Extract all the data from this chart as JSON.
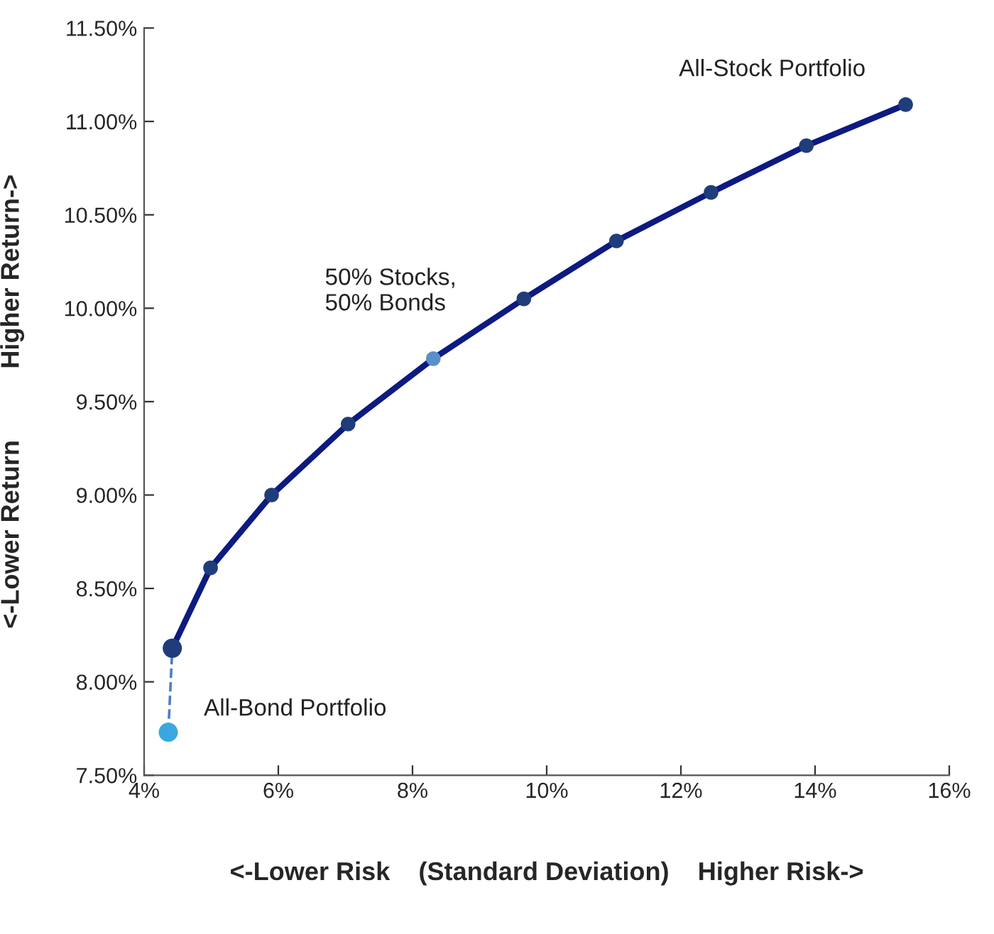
{
  "chart_data": {
    "type": "line",
    "xlabel": "<-Lower Risk    (Standard Deviation)    Higher Risk->",
    "ylabel": "<-Lower Return          Higher Return->",
    "series": [
      {
        "color": "#4a7ec8",
        "line_style": "dashed",
        "marker": "circle",
        "colors": [
          "#3aa8e0",
          "#1f3d7a"
        ],
        "x": [
          4.36,
          4.42
        ],
        "values": [
          7.73,
          8.18
        ]
      },
      {
        "color": "#0d1a80",
        "line_style": "solid",
        "marker": "circle",
        "colors": [
          "#1f3d7a",
          "#1f3d7a",
          "#1f3d7a",
          "#1f3d7a",
          "#5b8fc8",
          "#1f3d7a",
          "#1f3d7a",
          "#1f3d7a",
          "#1f3d7a",
          "#1f3d7a"
        ],
        "x": [
          4.42,
          4.99,
          5.9,
          7.04,
          8.31,
          9.66,
          11.04,
          12.45,
          13.87,
          15.35
        ],
        "values": [
          8.18,
          8.61,
          9.0,
          9.38,
          9.73,
          10.05,
          10.36,
          10.62,
          10.87,
          11.09
        ]
      }
    ],
    "annotations": [
      {
        "text": "All-Stock Portfolio",
        "x": 15.35,
        "y": 11.09
      },
      {
        "text": "50% Stocks,\n50% Bonds",
        "x": 8.31,
        "y": 9.73
      },
      {
        "text": "All-Bond Portfolio",
        "x": 4.36,
        "y": 7.73
      }
    ],
    "xlim": [
      4,
      16
    ],
    "ylim": [
      7.5,
      11.5
    ],
    "xticks": [
      {
        "value": 4,
        "label": "4%"
      },
      {
        "value": 6,
        "label": "6%"
      },
      {
        "value": 8,
        "label": "8%"
      },
      {
        "value": 10,
        "label": "10%"
      },
      {
        "value": 12,
        "label": "12%"
      },
      {
        "value": 14,
        "label": "14%"
      },
      {
        "value": 16,
        "label": "16%"
      }
    ],
    "yticks": [
      {
        "value": 7.5,
        "label": "7.50%"
      },
      {
        "value": 8.0,
        "label": "8.00%"
      },
      {
        "value": 8.5,
        "label": "8.50%"
      },
      {
        "value": 9.0,
        "label": "9.00%"
      },
      {
        "value": 9.5,
        "label": "9.50%"
      },
      {
        "value": 10.0,
        "label": "10.00%"
      },
      {
        "value": 10.5,
        "label": "10.50%"
      },
      {
        "value": 11.0,
        "label": "11.00%"
      },
      {
        "value": 11.5,
        "label": "11.50%"
      }
    ],
    "grid": false,
    "legend": false
  }
}
